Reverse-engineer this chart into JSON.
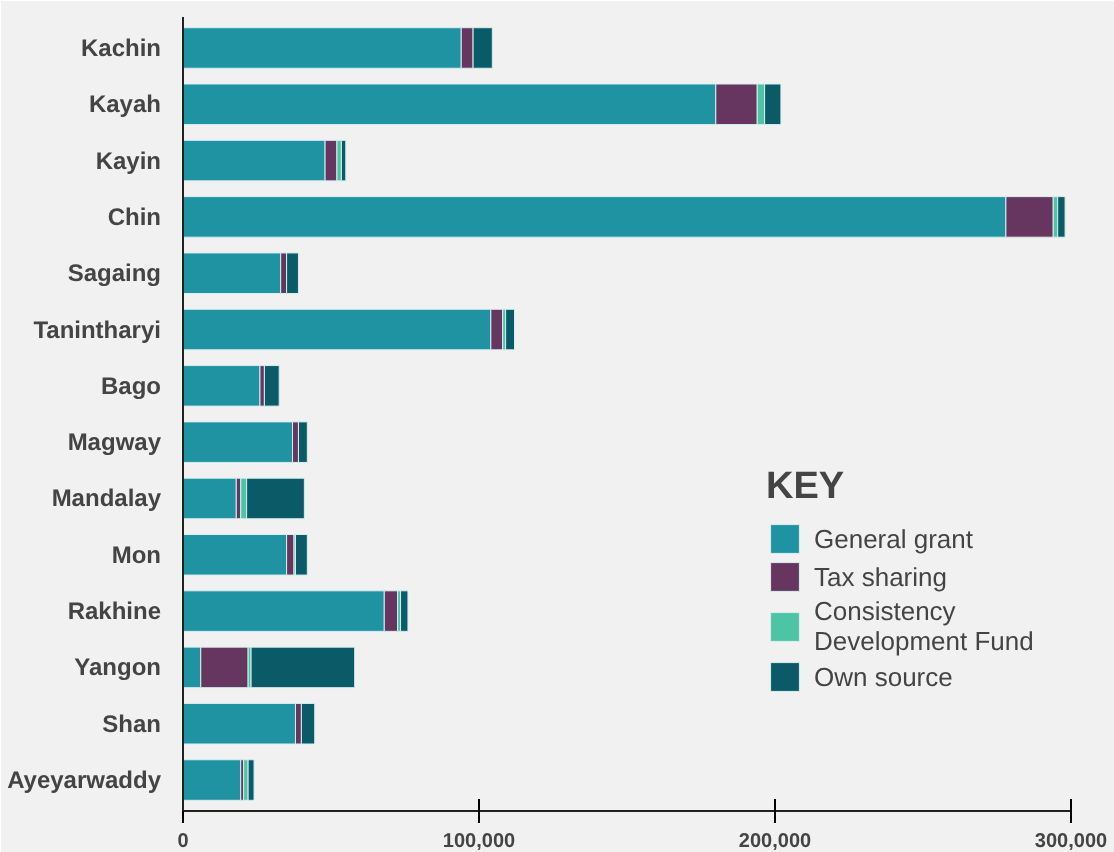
{
  "chart_data": {
    "type": "bar",
    "orientation": "horizontal",
    "stacked": true,
    "legend": "right",
    "legend_title": "KEY",
    "grid": false,
    "categories": [
      "Kachin",
      "Kayah",
      "Kayin",
      "Chin",
      "Sagaing",
      "Tanintharyi",
      "Bago",
      "Magway",
      "Mandalay",
      "Mon",
      "Rakhine",
      "Yangon",
      "Shan",
      "Ayeyarwaddy"
    ],
    "xlim": [
      0,
      300000
    ],
    "xticks": [
      0,
      {
        "value": 100000,
        "label": "100,000"
      },
      {
        "value": 200000,
        "label": "200,000"
      },
      {
        "value": 300000,
        "label": "300,000"
      }
    ],
    "series": [
      {
        "name": "General grant",
        "color": "#1f93a1",
        "values": [
          94000,
          180000,
          48000,
          278000,
          33000,
          104000,
          26000,
          37000,
          18000,
          35000,
          68000,
          6000,
          38000,
          19500
        ]
      },
      {
        "name": "Tax sharing",
        "color": "#673660",
        "values": [
          4000,
          14000,
          4000,
          16000,
          2000,
          4000,
          1500,
          2000,
          1500,
          2500,
          4500,
          16000,
          2000,
          1000
        ]
      },
      {
        "name": "Consistency Development Fund",
        "color": "#4dc4a3",
        "values": [
          null,
          2500,
          1500,
          1500,
          null,
          1000,
          null,
          null,
          2000,
          500,
          1000,
          1000,
          null,
          1500
        ]
      },
      {
        "name": "Own source",
        "color": "#0b5a68",
        "values": [
          6500,
          5500,
          1500,
          2500,
          4000,
          3000,
          5000,
          3000,
          19500,
          4000,
          2500,
          35000,
          4500,
          2000
        ]
      }
    ]
  }
}
